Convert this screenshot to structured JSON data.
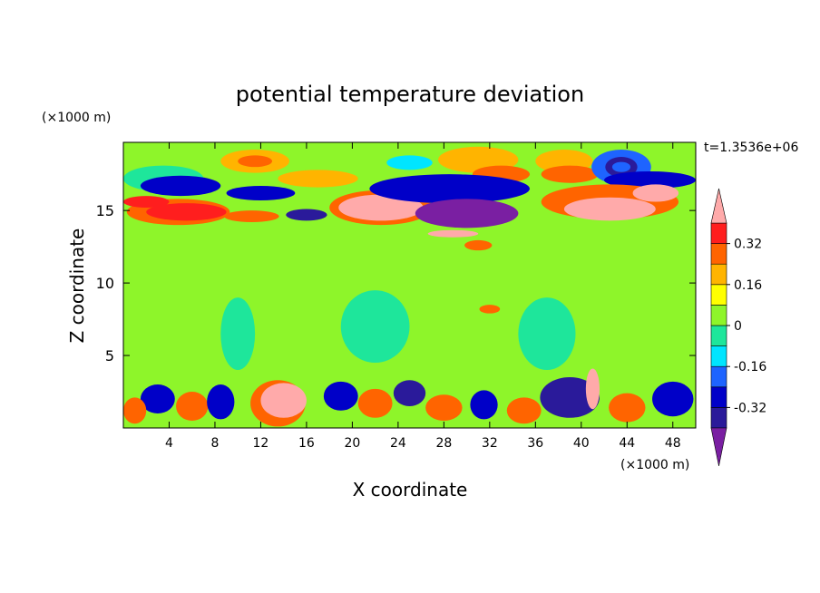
{
  "chart_data": {
    "type": "heatmap",
    "title": "potential temperature deviation",
    "xlabel": "X coordinate",
    "ylabel": "Z coordinate",
    "x_unit": "(×1000 m)",
    "y_unit": "(×1000 m)",
    "time_label": "t=1.3536e+06",
    "xlim": [
      0,
      50
    ],
    "ylim": [
      0,
      19.7
    ],
    "x_ticks": [
      4,
      8,
      12,
      16,
      20,
      24,
      28,
      32,
      36,
      40,
      44,
      48
    ],
    "y_ticks": [
      5,
      10,
      15
    ],
    "colorbar": {
      "levels": [
        -0.4,
        -0.32,
        -0.24,
        -0.16,
        -0.08,
        0,
        0.08,
        0.16,
        0.24,
        0.32,
        0.4
      ],
      "colors": [
        "#7a1fa2",
        "#2a1a9a",
        "#0000c8",
        "#1e64ff",
        "#00e5ff",
        "#1ee69b",
        "#8ef52a",
        "#ffff00",
        "#ffb400",
        "#ff6400",
        "#ff1e1e",
        "#ffaaaa"
      ],
      "labels": [
        "0.32",
        "0.16",
        "0",
        "-0.16",
        "-0.32"
      ],
      "label_values": [
        0.32,
        0.16,
        0,
        -0.16,
        -0.32
      ],
      "extend": "both"
    },
    "background_level": 0.04,
    "features": [
      {
        "x": 11.5,
        "z": 18.4,
        "rx": 3.0,
        "rz": 0.8,
        "v": 0.2
      },
      {
        "x": 11.5,
        "z": 18.4,
        "rx": 1.5,
        "rz": 0.4,
        "v": 0.28
      },
      {
        "x": 17,
        "z": 17.2,
        "rx": 3.5,
        "rz": 0.6,
        "v": 0.2
      },
      {
        "x": 3.5,
        "z": 17.2,
        "rx": 3.5,
        "rz": 0.9,
        "v": -0.08
      },
      {
        "x": 5,
        "z": 16.7,
        "rx": 3.5,
        "rz": 0.7,
        "v": -0.3
      },
      {
        "x": 12,
        "z": 16.2,
        "rx": 3.0,
        "rz": 0.5,
        "v": -0.3
      },
      {
        "x": 4.8,
        "z": 14.9,
        "rx": 4.5,
        "rz": 0.9,
        "v": 0.26
      },
      {
        "x": 5.5,
        "z": 14.9,
        "rx": 3.5,
        "rz": 0.6,
        "v": 0.38
      },
      {
        "x": 2,
        "z": 15.6,
        "rx": 2.0,
        "rz": 0.4,
        "v": 0.38
      },
      {
        "x": 11.2,
        "z": 14.6,
        "rx": 2.4,
        "rz": 0.4,
        "v": 0.26
      },
      {
        "x": 16,
        "z": 14.7,
        "rx": 1.8,
        "rz": 0.4,
        "v": -0.34
      },
      {
        "x": 22.5,
        "z": 15.2,
        "rx": 4.5,
        "rz": 1.2,
        "v": 0.24
      },
      {
        "x": 22.5,
        "z": 15.2,
        "rx": 3.7,
        "rz": 0.9,
        "v": 0.4
      },
      {
        "x": 31,
        "z": 18.5,
        "rx": 3.5,
        "rz": 0.9,
        "v": 0.18
      },
      {
        "x": 33,
        "z": 17.5,
        "rx": 2.5,
        "rz": 0.6,
        "v": 0.28
      },
      {
        "x": 25,
        "z": 18.3,
        "rx": 2.0,
        "rz": 0.5,
        "v": -0.1
      },
      {
        "x": 28.5,
        "z": 16.5,
        "rx": 7.0,
        "rz": 1.0,
        "v": -0.3
      },
      {
        "x": 30,
        "z": 14.8,
        "rx": 4.5,
        "rz": 1.0,
        "v": -0.42
      },
      {
        "x": 38.5,
        "z": 18.4,
        "rx": 2.5,
        "rz": 0.8,
        "v": 0.22
      },
      {
        "x": 39,
        "z": 17.5,
        "rx": 2.5,
        "rz": 0.6,
        "v": 0.3
      },
      {
        "x": 43.5,
        "z": 18.0,
        "rx": 2.6,
        "rz": 1.2,
        "v": -0.2
      },
      {
        "x": 43.5,
        "z": 18.0,
        "rx": 1.4,
        "rz": 0.7,
        "v": -0.34
      },
      {
        "x": 43.5,
        "z": 18.0,
        "rx": 0.8,
        "rz": 0.35,
        "v": -0.2
      },
      {
        "x": 46,
        "z": 17.1,
        "rx": 4.0,
        "rz": 0.6,
        "v": -0.26
      },
      {
        "x": 42.5,
        "z": 15.6,
        "rx": 6.0,
        "rz": 1.2,
        "v": 0.26
      },
      {
        "x": 42.5,
        "z": 15.1,
        "rx": 4.0,
        "rz": 0.8,
        "v": 0.4
      },
      {
        "x": 46.5,
        "z": 16.2,
        "rx": 2.0,
        "rz": 0.6,
        "v": 0.42
      },
      {
        "x": 28.8,
        "z": 13.4,
        "rx": 2.2,
        "rz": 0.25,
        "v": 0.4
      },
      {
        "x": 31,
        "z": 12.6,
        "rx": 1.2,
        "rz": 0.35,
        "v": 0.3
      },
      {
        "x": 32,
        "z": 8.2,
        "rx": 0.9,
        "rz": 0.3,
        "v": 0.26
      },
      {
        "x": 13.5,
        "z": 1.7,
        "rx": 2.4,
        "rz": 1.6,
        "v": 0.28
      },
      {
        "x": 14,
        "z": 1.9,
        "rx": 2.0,
        "rz": 1.2,
        "v": 0.42
      },
      {
        "x": 3,
        "z": 2.0,
        "rx": 1.5,
        "rz": 1.0,
        "v": -0.3
      },
      {
        "x": 6,
        "z": 1.5,
        "rx": 1.4,
        "rz": 1.0,
        "v": 0.26
      },
      {
        "x": 8.5,
        "z": 1.8,
        "rx": 1.2,
        "rz": 1.2,
        "v": -0.3
      },
      {
        "x": 1,
        "z": 1.2,
        "rx": 1.0,
        "rz": 0.9,
        "v": 0.3
      },
      {
        "x": 19,
        "z": 2.2,
        "rx": 1.5,
        "rz": 1.0,
        "v": -0.3
      },
      {
        "x": 22,
        "z": 1.7,
        "rx": 1.5,
        "rz": 1.0,
        "v": 0.28
      },
      {
        "x": 25,
        "z": 2.4,
        "rx": 1.4,
        "rz": 0.9,
        "v": -0.34
      },
      {
        "x": 28,
        "z": 1.4,
        "rx": 1.6,
        "rz": 0.9,
        "v": 0.3
      },
      {
        "x": 31.5,
        "z": 1.6,
        "rx": 1.2,
        "rz": 1.0,
        "v": -0.32
      },
      {
        "x": 35,
        "z": 1.2,
        "rx": 1.5,
        "rz": 0.9,
        "v": 0.3
      },
      {
        "x": 39,
        "z": 2.1,
        "rx": 2.6,
        "rz": 1.4,
        "v": -0.34
      },
      {
        "x": 41,
        "z": 2.7,
        "rx": 0.6,
        "rz": 1.4,
        "v": 0.4
      },
      {
        "x": 44,
        "z": 1.4,
        "rx": 1.6,
        "rz": 1.0,
        "v": 0.26
      },
      {
        "x": 48,
        "z": 2.0,
        "rx": 1.8,
        "rz": 1.2,
        "v": -0.3
      },
      {
        "x": 10,
        "z": 6.5,
        "rx": 1.5,
        "rz": 2.5,
        "v": -0.02
      },
      {
        "x": 22,
        "z": 7.0,
        "rx": 3.0,
        "rz": 2.5,
        "v": -0.02
      },
      {
        "x": 37,
        "z": 6.5,
        "rx": 2.5,
        "rz": 2.5,
        "v": -0.02
      }
    ]
  }
}
